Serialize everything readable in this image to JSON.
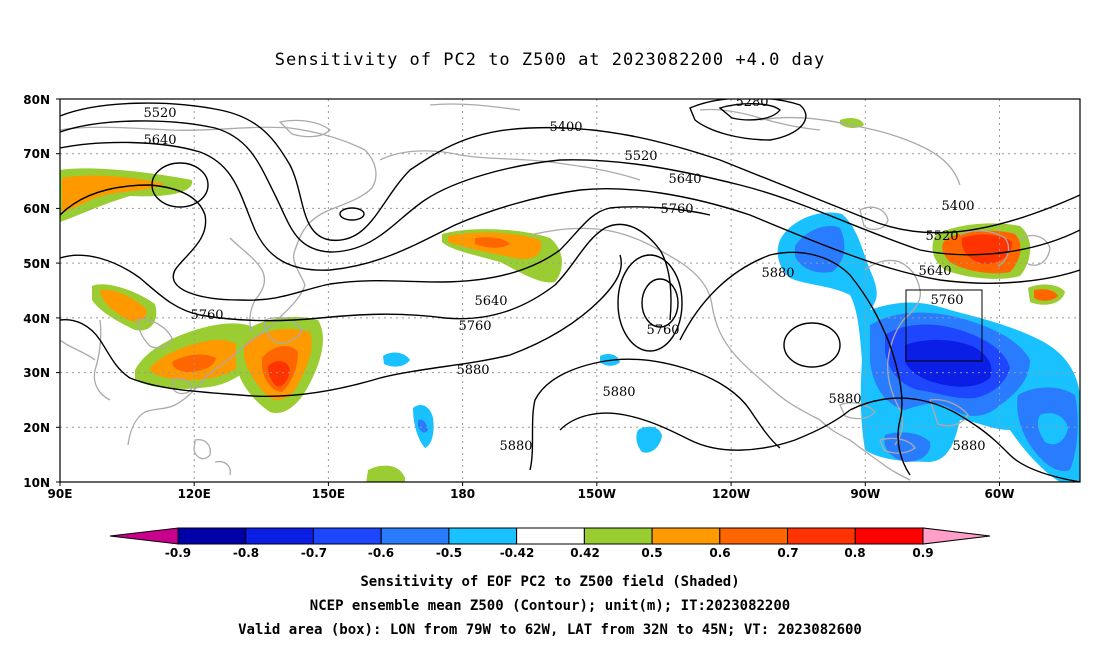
{
  "title": "Sensitivity of PC2 to Z500 at 2023082200 +4.0 day",
  "lat_ticks": [
    "80N",
    "70N",
    "60N",
    "50N",
    "40N",
    "30N",
    "20N",
    "10N"
  ],
  "lon_ticks": [
    "90E",
    "120E",
    "150E",
    "180",
    "150W",
    "120W",
    "90W",
    "60W"
  ],
  "contour_labels": [
    "5520",
    "5640",
    "5400",
    "5280",
    "5520",
    "5640",
    "5760",
    "5400",
    "5520",
    "5880",
    "5640",
    "5760",
    "5640",
    "5760",
    "5760",
    "5880",
    "5760",
    "5880",
    "5880",
    "5880",
    "5880"
  ],
  "colorbar": {
    "labels": [
      "-0.9",
      "-0.8",
      "-0.7",
      "-0.6",
      "-0.5",
      "-0.42",
      "0.42",
      "0.5",
      "0.6",
      "0.7",
      "0.8",
      "0.9"
    ],
    "colors": [
      "#0000a8",
      "#0a1ee6",
      "#1e46ff",
      "#2a7cff",
      "#19c2ff",
      "#ffffff",
      "#9acd32",
      "#ff9900",
      "#ff6600",
      "#ff3300",
      "#ff0000"
    ],
    "low_end_color": "#c8008c",
    "high_end_color": "#ff9ec8"
  },
  "captions": [
    "Sensitivity of EOF PC2 to Z500 field (Shaded)",
    "NCEP ensemble mean Z500 (Contour); unit(m); IT:2023082200",
    "Valid area (box): LON from 79W to 62W, LAT from 32N to 45N; VT: 2023082600"
  ]
}
